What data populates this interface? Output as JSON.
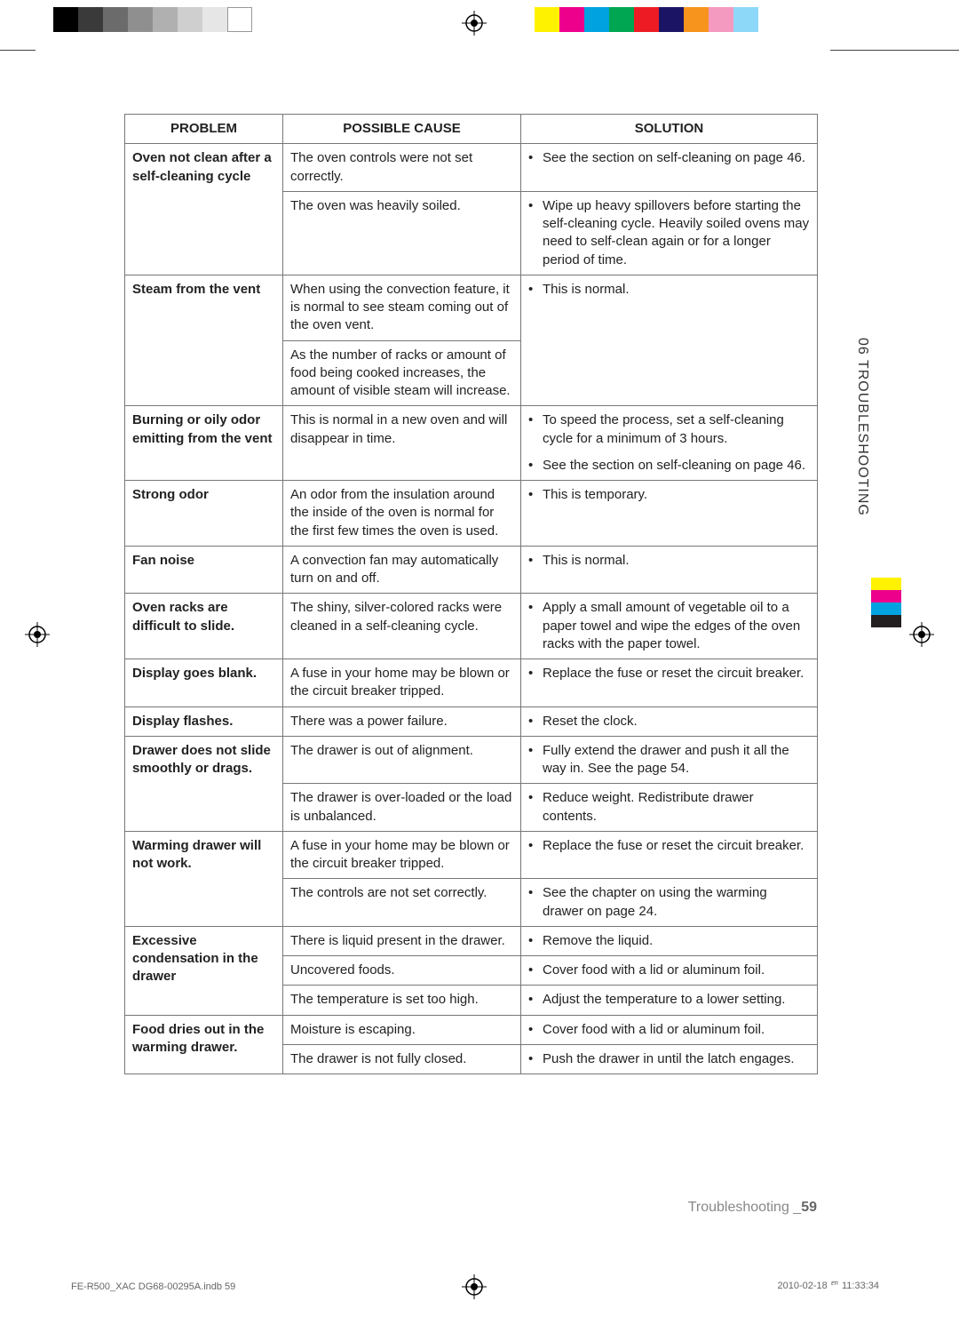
{
  "top_color_bar_left": [
    "#000000",
    "#3a3a3a",
    "#6b6b6b",
    "#8f8f8f",
    "#b0b0b0",
    "#cfcfcf",
    "#e6e6e6",
    "#ffffff"
  ],
  "top_color_bar_right": [
    "#fff200",
    "#ec008c",
    "#00a2e0",
    "#00a651",
    "#ed1c24",
    "#1b1464",
    "#f7941d",
    "#f49ac1",
    "#8dd8f8"
  ],
  "side_bar_colors": [
    "#fff200",
    "#ec008c",
    "#00a2e0",
    "#231f20"
  ],
  "side_tab_text": "06  TROUBLESHOOTING",
  "headers": {
    "problem": "PROBLEM",
    "cause": "POSSIBLE CAUSE",
    "solution": "SOLUTION"
  },
  "rows": [
    {
      "problem": "Oven not clean after a self-cleaning cycle",
      "sub": [
        {
          "cause": "The oven controls were not set correctly.",
          "solutions": [
            "See the section on self-cleaning on page 46."
          ]
        },
        {
          "cause": "The oven was heavily soiled.",
          "solutions": [
            "Wipe up heavy spillovers before starting the self-cleaning cycle. Heavily soiled ovens may need to self-clean again or for a longer period of time."
          ]
        }
      ]
    },
    {
      "problem": "Steam from the vent",
      "sub": [
        {
          "cause": "When using the convection feature, it is normal to see steam coming out of the oven vent.",
          "solutions": [
            "This is normal."
          ],
          "sol_rowspan": 2
        },
        {
          "cause": "As the number of racks or amount of food being cooked increases, the amount of visible steam will increase."
        }
      ]
    },
    {
      "problem": "Burning or oily odor emitting from the vent",
      "sub": [
        {
          "cause": "This is normal in a new oven and will disappear in time.",
          "solutions": [
            "To speed the process, set a self-cleaning cycle for a minimum of 3 hours.",
            "See the section on self-cleaning on page 46."
          ]
        }
      ]
    },
    {
      "problem": "Strong odor",
      "sub": [
        {
          "cause": "An odor from the insulation around the inside of the oven is normal for the first few times the oven is used.",
          "solutions": [
            "This is temporary."
          ]
        }
      ]
    },
    {
      "problem": "Fan noise",
      "sub": [
        {
          "cause": "A convection fan may automatically turn on and off.",
          "solutions": [
            "This is normal."
          ]
        }
      ]
    },
    {
      "problem": "Oven racks are difficult to slide.",
      "sub": [
        {
          "cause": "The shiny, silver-colored racks were cleaned in a self-cleaning cycle.",
          "solutions": [
            "Apply a small amount of vegetable oil to a paper towel and wipe the edges of the oven racks with the paper towel."
          ]
        }
      ]
    },
    {
      "problem": "Display goes blank.",
      "sub": [
        {
          "cause": "A fuse in your home may be blown or the circuit breaker tripped.",
          "solutions": [
            "Replace the fuse or reset the circuit breaker."
          ]
        }
      ]
    },
    {
      "problem": "Display flashes.",
      "sub": [
        {
          "cause": "There was a power failure.",
          "solutions": [
            "Reset the clock."
          ]
        }
      ]
    },
    {
      "problem": "Drawer does not slide smoothly or drags.",
      "sub": [
        {
          "cause": "The drawer is out of alignment.",
          "solutions": [
            "Fully extend the drawer and push it all the way in. See the page 54."
          ]
        },
        {
          "cause": "The drawer is over-loaded or the load is unbalanced.",
          "solutions": [
            "Reduce weight. Redistribute drawer contents."
          ]
        }
      ]
    },
    {
      "problem": "Warming drawer will not work.",
      "sub": [
        {
          "cause": "A fuse in your home may be blown or the circuit breaker tripped.",
          "solutions": [
            "Replace the fuse or reset the circuit breaker."
          ]
        },
        {
          "cause": "The controls are not set correctly.",
          "solutions": [
            "See the chapter on using the warming drawer on page 24."
          ]
        }
      ]
    },
    {
      "problem": "Excessive condensation in the drawer",
      "sub": [
        {
          "cause": "There is liquid present in the drawer.",
          "solutions": [
            "Remove the liquid."
          ]
        },
        {
          "cause": "Uncovered foods.",
          "solutions": [
            "Cover food with a lid or aluminum foil."
          ]
        },
        {
          "cause": "The temperature is set too high.",
          "solutions": [
            "Adjust the temperature to a lower setting."
          ]
        }
      ]
    },
    {
      "problem": "Food dries out in the warming drawer.",
      "sub": [
        {
          "cause": "Moisture is escaping.",
          "solutions": [
            "Cover food with a lid or aluminum foil."
          ]
        },
        {
          "cause": "The drawer is not fully closed.",
          "solutions": [
            "Push the drawer in until the latch engages."
          ]
        }
      ]
    }
  ],
  "footer": {
    "label": "Troubleshooting _",
    "page": "59"
  },
  "print_meta": {
    "file": "FE-R500_XAC DG68-00295A.indb   59",
    "timestamp": "2010-02-18   ꥥ 11:33:34"
  }
}
